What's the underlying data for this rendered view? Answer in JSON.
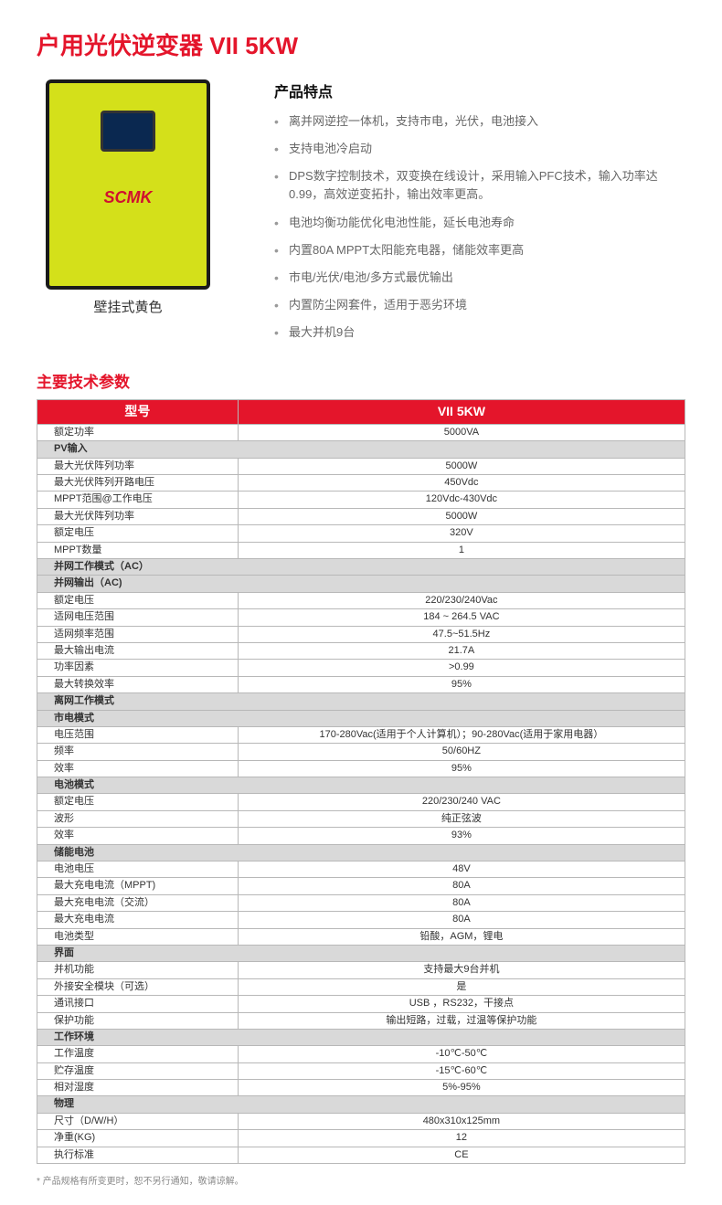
{
  "title": "户用光伏逆变器  VII 5KW",
  "product": {
    "caption": "壁挂式黄色",
    "logo": "SCMK",
    "body_color": "#d4e01a",
    "frame_color": "#1a1a1a",
    "lcd_color": "#0a2850"
  },
  "features": {
    "heading": "产品特点",
    "items": [
      "离并网逆控一体机，支持市电，光伏，电池接入",
      "支持电池冷启动",
      "DPS数字控制技术，双变换在线设计，采用输入PFC技术，输入功率达0.99，高效逆变拓扑，输出效率更高。",
      "电池均衡功能优化电池性能，延长电池寿命",
      "内置80A MPPT太阳能充电器，储能效率更高",
      "市电/光伏/电池/多方式最优输出",
      "内置防尘网套件，适用于恶劣环境",
      "最大并机9台"
    ]
  },
  "specs": {
    "heading": "主要技术参数",
    "header": {
      "col1": "型号",
      "col2": "VII 5KW"
    },
    "rows": [
      {
        "type": "data",
        "label": "额定功率",
        "value": "5000VA"
      },
      {
        "type": "section",
        "label": "PV输入"
      },
      {
        "type": "data",
        "label": "最大光伏阵列功率",
        "value": "5000W"
      },
      {
        "type": "data",
        "label": "最大光伏阵列开路电压",
        "value": "450Vdc"
      },
      {
        "type": "data",
        "label": "MPPT范围@工作电压",
        "value": "120Vdc-430Vdc"
      },
      {
        "type": "data",
        "label": "最大光伏阵列功率",
        "value": "5000W"
      },
      {
        "type": "data",
        "label": "额定电压",
        "value": "320V"
      },
      {
        "type": "data",
        "label": "MPPT数量",
        "value": "1"
      },
      {
        "type": "section",
        "label": "并网工作模式（AC）"
      },
      {
        "type": "section",
        "label": "并网输出（AC)"
      },
      {
        "type": "data",
        "label": "额定电压",
        "value": "220/230/240Vac"
      },
      {
        "type": "data",
        "label": "适网电压范围",
        "value": "184 ~ 264.5 VAC"
      },
      {
        "type": "data",
        "label": "适网频率范围",
        "value": "47.5~51.5Hz"
      },
      {
        "type": "data",
        "label": "最大输出电流",
        "value": "21.7A"
      },
      {
        "type": "data",
        "label": "功率因素",
        "value": ">0.99"
      },
      {
        "type": "data",
        "label": "最大转换效率",
        "value": "95%"
      },
      {
        "type": "section",
        "label": "离网工作模式"
      },
      {
        "type": "section",
        "label": "市电模式"
      },
      {
        "type": "data",
        "label": "电压范围",
        "value": "170-280Vac(适用于个人计算机）；90-280Vac(适用于家用电器）"
      },
      {
        "type": "data",
        "label": "频率",
        "value": "50/60HZ"
      },
      {
        "type": "data",
        "label": "效率",
        "value": "95%"
      },
      {
        "type": "section",
        "label": "电池模式"
      },
      {
        "type": "data",
        "label": "额定电压",
        "value": "220/230/240 VAC"
      },
      {
        "type": "data",
        "label": "波形",
        "value": "纯正弦波"
      },
      {
        "type": "data",
        "label": "效率",
        "value": "93%"
      },
      {
        "type": "section",
        "label": "储能电池"
      },
      {
        "type": "data",
        "label": "电池电压",
        "value": "48V"
      },
      {
        "type": "data",
        "label": "最大充电电流（MPPT)",
        "value": "80A"
      },
      {
        "type": "data",
        "label": "最大充电电流（交流）",
        "value": "80A"
      },
      {
        "type": "data",
        "label": "最大充电电流",
        "value": "80A"
      },
      {
        "type": "data",
        "label": "电池类型",
        "value": "铅酸，AGM，锂电"
      },
      {
        "type": "section",
        "label": "界面"
      },
      {
        "type": "data",
        "label": "并机功能",
        "value": "支持最大9台并机"
      },
      {
        "type": "data",
        "label": "外接安全模块（可选）",
        "value": "是"
      },
      {
        "type": "data",
        "label": "通讯接口",
        "value": "USB ，RS232，干接点"
      },
      {
        "type": "data",
        "label": "保护功能",
        "value": "输出短路，过载，过温等保护功能"
      },
      {
        "type": "section",
        "label": "工作环境"
      },
      {
        "type": "data",
        "label": "工作温度",
        "value": "-10℃-50℃"
      },
      {
        "type": "data",
        "label": "贮存温度",
        "value": "-15℃-60℃"
      },
      {
        "type": "data",
        "label": "相对湿度",
        "value": "5%-95%"
      },
      {
        "type": "section",
        "label": "物理"
      },
      {
        "type": "data",
        "label": "尺寸（D/W/H）",
        "value": "480x310x125mm"
      },
      {
        "type": "data",
        "label": "净重(KG)",
        "value": "12"
      },
      {
        "type": "data",
        "label": "执行标准",
        "value": "CE"
      }
    ]
  },
  "footnote": "* 产品规格有所变更时，恕不另行通知，敬请谅解。",
  "colors": {
    "accent": "#e4152b",
    "border": "#b8b8b8",
    "section_bg": "#d9d9d9",
    "text": "#333333",
    "muted": "#676767"
  }
}
